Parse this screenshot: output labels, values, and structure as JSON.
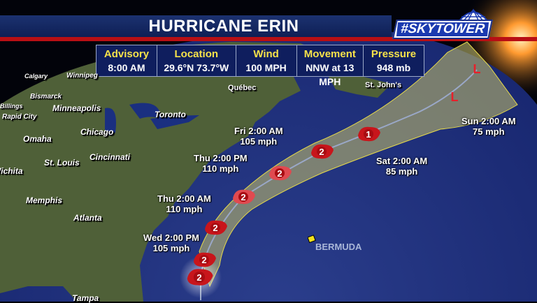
{
  "header": {
    "title": "HURRICANE ERIN",
    "logo_text": "#SKYTOWER"
  },
  "info": [
    {
      "label": "Advisory",
      "value": "8:00 AM"
    },
    {
      "label": "Location",
      "value": "29.6°N  73.7°W"
    },
    {
      "label": "Wind",
      "value": "100 MPH"
    },
    {
      "label": "Movement",
      "value": "NNW at 13 MPH"
    },
    {
      "label": "Pressure",
      "value": "948 mb"
    }
  ],
  "cities": [
    "Calgary",
    "Winnipeg",
    "Bismarck",
    "Billings",
    "Rapid City",
    "Minneapolis",
    "Omaha",
    "Chicago",
    "Toronto",
    "Québec",
    "St. John's",
    "St. Louis",
    "Cincinnati",
    "Wichita",
    "Memphis",
    "Atlanta",
    "Tampa"
  ],
  "forecast_labels": [
    {
      "time": "Wed 2:00 PM",
      "wind": "105 mph"
    },
    {
      "time": "Thu 2:00 AM",
      "wind": "110 mph"
    },
    {
      "time": "Thu 2:00 PM",
      "wind": "110 mph"
    },
    {
      "time": "Fri 2:00 AM",
      "wind": "105 mph"
    },
    {
      "time": "Sat 2:00 AM",
      "wind": "85 mph"
    },
    {
      "time": "Sun 2:00 AM",
      "wind": "75 mph"
    }
  ],
  "track_points": [
    {
      "type": "hurricane",
      "category": "2"
    },
    {
      "type": "hurricane",
      "category": "2"
    },
    {
      "type": "hurricane",
      "category": "2"
    },
    {
      "type": "hurricane",
      "category": "2"
    },
    {
      "type": "hurricane",
      "category": "2"
    },
    {
      "type": "hurricane",
      "category": "2"
    },
    {
      "type": "hurricane",
      "category": "1"
    },
    {
      "type": "low",
      "category": "L"
    },
    {
      "type": "low",
      "category": "L"
    }
  ],
  "island": "BERMUDA",
  "colors": {
    "header": "#142a66",
    "accent_red": "#b80f14",
    "label_yellow": "#f7e24a",
    "storm_red": "#c8151b",
    "ocean": "#1d2f7a",
    "land": "#4d5e3a",
    "cone": "#b9b56a"
  }
}
